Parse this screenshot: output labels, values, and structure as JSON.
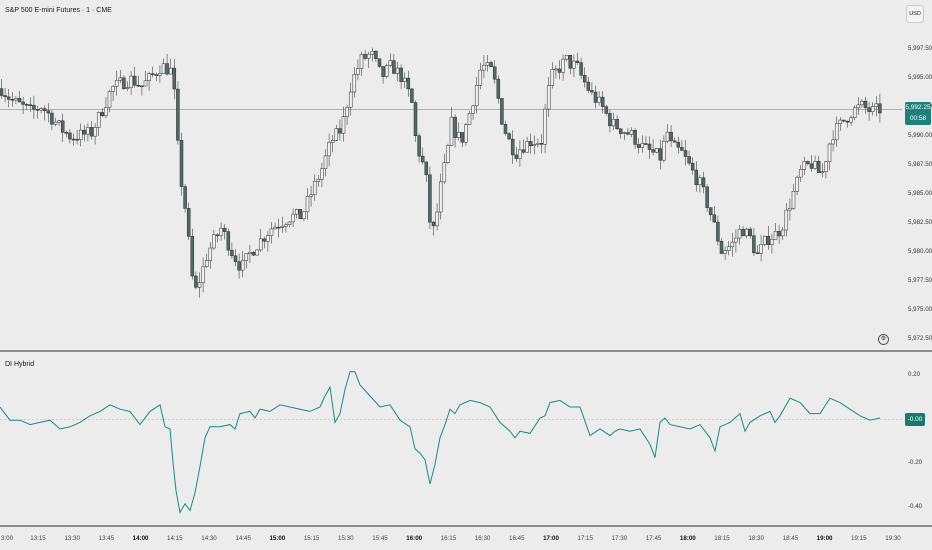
{
  "chart": {
    "title": "S&P 500 E-mini Futures · 1 · CME",
    "currency": "USD",
    "last_price": "5,992.25",
    "countdown": "00:58",
    "price_ticks": [
      "5,997.50",
      "5,995.00",
      "5,992.50",
      "5,990.00",
      "5,987.50",
      "5,985.00",
      "5,982.50",
      "5,980.00",
      "5,977.50",
      "5,975.00",
      "5,972.50"
    ],
    "colors": {
      "up": "#f0f0f0",
      "down": "#4f6b68",
      "wick": "#444444",
      "last_line": "#4fa39b",
      "label": "#1f8079"
    }
  },
  "indicator": {
    "name": "DI Hybrid",
    "current_value": "-0.00",
    "ticks": [
      "0.20",
      "0.00",
      "-0.20",
      "-0.40"
    ],
    "color": "#1a8a80"
  },
  "time_axis": {
    "labels": [
      "3:00",
      "13:15",
      "13:30",
      "13:45",
      "14:00",
      "14:15",
      "14:30",
      "14:45",
      "15:00",
      "15:15",
      "15:30",
      "15:45",
      "16:00",
      "16:15",
      "16:30",
      "16:45",
      "17:00",
      "17:15",
      "17:30",
      "17:45",
      "18:00",
      "18:15",
      "18:30",
      "18:45",
      "19:00",
      "19:15",
      "19:30"
    ],
    "bold": [
      "14:00",
      "15:00",
      "16:00",
      "17:00",
      "18:00",
      "19:00"
    ]
  },
  "chart_data": [
    {
      "type": "candlestick",
      "name": "S&P 500 E-mini Futures",
      "y_axis_ticks": [
        5997.5,
        5995.0,
        5992.5,
        5990.0,
        5987.5,
        5985.0,
        5982.5,
        5980.0,
        5977.5,
        5975.0,
        5972.5
      ],
      "last": 5992.25,
      "close_path": [
        [
          0,
          5994
        ],
        [
          10,
          5993
        ],
        [
          20,
          5992.5
        ],
        [
          30,
          5992
        ],
        [
          40,
          5992.5
        ],
        [
          50,
          5991.5
        ],
        [
          60,
          5990.5
        ],
        [
          70,
          5989.8
        ],
        [
          80,
          5990
        ],
        [
          90,
          5990.2
        ],
        [
          100,
          5992
        ],
        [
          110,
          5994
        ],
        [
          120,
          5994.5
        ],
        [
          130,
          5994.8
        ],
        [
          140,
          5994.2
        ],
        [
          150,
          5995
        ],
        [
          160,
          5996
        ],
        [
          170,
          5995.5
        ],
        [
          172,
          5994.5
        ],
        [
          178,
          5987
        ],
        [
          185,
          5983
        ],
        [
          190,
          5978
        ],
        [
          194,
          5976.5
        ],
        [
          200,
          5978
        ],
        [
          205,
          5979.5
        ],
        [
          210,
          5980.5
        ],
        [
          220,
          5982
        ],
        [
          230,
          5980
        ],
        [
          240,
          5978.5
        ],
        [
          250,
          5980
        ],
        [
          260,
          5981
        ],
        [
          270,
          5982
        ],
        [
          280,
          5982.5
        ],
        [
          290,
          5983
        ],
        [
          300,
          5983
        ],
        [
          310,
          5985
        ],
        [
          320,
          5987
        ],
        [
          330,
          5989.5
        ],
        [
          340,
          5990.5
        ],
        [
          350,
          5994.5
        ],
        [
          360,
          5996.5
        ],
        [
          370,
          5997
        ],
        [
          375,
          5996
        ],
        [
          380,
          5995
        ],
        [
          390,
          5996
        ],
        [
          400,
          5995
        ],
        [
          410,
          5993
        ],
        [
          415,
          5989
        ],
        [
          420,
          5988
        ],
        [
          425,
          5986
        ],
        [
          430,
          5981
        ],
        [
          435,
          5983
        ],
        [
          440,
          5986
        ],
        [
          445,
          5988
        ],
        [
          450,
          5991
        ],
        [
          455,
          5990
        ],
        [
          460,
          5989.5
        ],
        [
          470,
          5992.5
        ],
        [
          480,
          5996
        ],
        [
          490,
          5995.5
        ],
        [
          495,
          5994
        ],
        [
          500,
          5991.5
        ],
        [
          505,
          5990
        ],
        [
          510,
          5989
        ],
        [
          515,
          5988.5
        ],
        [
          520,
          5989
        ],
        [
          530,
          5989.5
        ],
        [
          540,
          5989.5
        ],
        [
          545,
          5993
        ],
        [
          550,
          5995
        ],
        [
          555,
          5995.5
        ],
        [
          560,
          5996
        ],
        [
          565,
          5996.5
        ],
        [
          570,
          5996
        ],
        [
          575,
          5996
        ],
        [
          580,
          5995
        ],
        [
          590,
          5993.5
        ],
        [
          600,
          5992.5
        ],
        [
          610,
          5991
        ],
        [
          620,
          5990.5
        ],
        [
          630,
          5990
        ],
        [
          640,
          5989
        ],
        [
          650,
          5988.5
        ],
        [
          660,
          5988
        ],
        [
          665,
          5990.5
        ],
        [
          670,
          5989
        ],
        [
          680,
          5988.5
        ],
        [
          690,
          5987
        ],
        [
          700,
          5985.5
        ],
        [
          710,
          5983
        ],
        [
          715,
          5981.5
        ],
        [
          720,
          5980
        ],
        [
          730,
          5980.5
        ],
        [
          740,
          5982
        ],
        [
          750,
          5981
        ],
        [
          755,
          5979.5
        ],
        [
          765,
          5981
        ],
        [
          775,
          5981.5
        ],
        [
          780,
          5982
        ],
        [
          790,
          5984.5
        ],
        [
          800,
          5987
        ],
        [
          810,
          5987.5
        ],
        [
          820,
          5986.5
        ],
        [
          830,
          5990
        ],
        [
          840,
          5991
        ],
        [
          850,
          5992
        ],
        [
          860,
          5992.5
        ],
        [
          870,
          5992
        ],
        [
          880,
          5992.25
        ]
      ]
    },
    {
      "type": "line",
      "name": "DI Hybrid",
      "y_axis_ticks": [
        0.2,
        0.0,
        -0.2,
        -0.4
      ],
      "last": -0.0,
      "points": [
        [
          0,
          0.05
        ],
        [
          10,
          -0.01
        ],
        [
          20,
          -0.01
        ],
        [
          30,
          -0.03
        ],
        [
          40,
          -0.02
        ],
        [
          50,
          -0.01
        ],
        [
          60,
          -0.05
        ],
        [
          70,
          -0.04
        ],
        [
          80,
          -0.02
        ],
        [
          90,
          0.01
        ],
        [
          100,
          0.03
        ],
        [
          110,
          0.06
        ],
        [
          120,
          0.04
        ],
        [
          130,
          0.03
        ],
        [
          140,
          -0.03
        ],
        [
          150,
          0.03
        ],
        [
          160,
          0.06
        ],
        [
          165,
          -0.04
        ],
        [
          170,
          -0.05
        ],
        [
          173,
          -0.2
        ],
        [
          176,
          -0.33
        ],
        [
          180,
          -0.43
        ],
        [
          185,
          -0.39
        ],
        [
          190,
          -0.42
        ],
        [
          195,
          -0.34
        ],
        [
          200,
          -0.22
        ],
        [
          205,
          -0.09
        ],
        [
          210,
          -0.04
        ],
        [
          220,
          -0.04
        ],
        [
          230,
          -0.03
        ],
        [
          235,
          -0.05
        ],
        [
          240,
          0.02
        ],
        [
          250,
          0.03
        ],
        [
          255,
          0.0
        ],
        [
          260,
          0.04
        ],
        [
          270,
          0.03
        ],
        [
          280,
          0.06
        ],
        [
          290,
          0.05
        ],
        [
          300,
          0.04
        ],
        [
          310,
          0.03
        ],
        [
          320,
          0.05
        ],
        [
          325,
          0.1
        ],
        [
          330,
          0.14
        ],
        [
          335,
          -0.02
        ],
        [
          340,
          0.02
        ],
        [
          345,
          0.13
        ],
        [
          350,
          0.21
        ],
        [
          355,
          0.21
        ],
        [
          360,
          0.15
        ],
        [
          370,
          0.1
        ],
        [
          380,
          0.05
        ],
        [
          390,
          0.06
        ],
        [
          400,
          -0.01
        ],
        [
          410,
          -0.04
        ],
        [
          415,
          -0.14
        ],
        [
          420,
          -0.16
        ],
        [
          425,
          -0.19
        ],
        [
          430,
          -0.3
        ],
        [
          435,
          -0.21
        ],
        [
          440,
          -0.09
        ],
        [
          445,
          -0.03
        ],
        [
          450,
          0.04
        ],
        [
          455,
          0.02
        ],
        [
          460,
          0.06
        ],
        [
          470,
          0.08
        ],
        [
          480,
          0.07
        ],
        [
          490,
          0.05
        ],
        [
          500,
          -0.02
        ],
        [
          510,
          -0.06
        ],
        [
          515,
          -0.09
        ],
        [
          520,
          -0.06
        ],
        [
          530,
          -0.07
        ],
        [
          540,
          0.0
        ],
        [
          545,
          0.01
        ],
        [
          550,
          0.07
        ],
        [
          560,
          0.08
        ],
        [
          570,
          0.05
        ],
        [
          580,
          0.05
        ],
        [
          590,
          -0.08
        ],
        [
          600,
          -0.05
        ],
        [
          610,
          -0.08
        ],
        [
          615,
          -0.06
        ],
        [
          620,
          -0.05
        ],
        [
          630,
          -0.06
        ],
        [
          640,
          -0.05
        ],
        [
          650,
          -0.12
        ],
        [
          655,
          -0.18
        ],
        [
          660,
          -0.02
        ],
        [
          665,
          0.0
        ],
        [
          670,
          -0.03
        ],
        [
          680,
          -0.04
        ],
        [
          690,
          -0.05
        ],
        [
          700,
          -0.03
        ],
        [
          710,
          -0.09
        ],
        [
          715,
          -0.15
        ],
        [
          720,
          -0.04
        ],
        [
          730,
          -0.02
        ],
        [
          740,
          0.02
        ],
        [
          745,
          -0.06
        ],
        [
          750,
          -0.02
        ],
        [
          760,
          0.01
        ],
        [
          770,
          0.03
        ],
        [
          775,
          -0.02
        ],
        [
          780,
          0.01
        ],
        [
          790,
          0.09
        ],
        [
          800,
          0.07
        ],
        [
          810,
          0.02
        ],
        [
          820,
          0.02
        ],
        [
          830,
          0.09
        ],
        [
          840,
          0.07
        ],
        [
          850,
          0.04
        ],
        [
          860,
          0.01
        ],
        [
          870,
          -0.01
        ],
        [
          880,
          0.0
        ]
      ]
    }
  ]
}
